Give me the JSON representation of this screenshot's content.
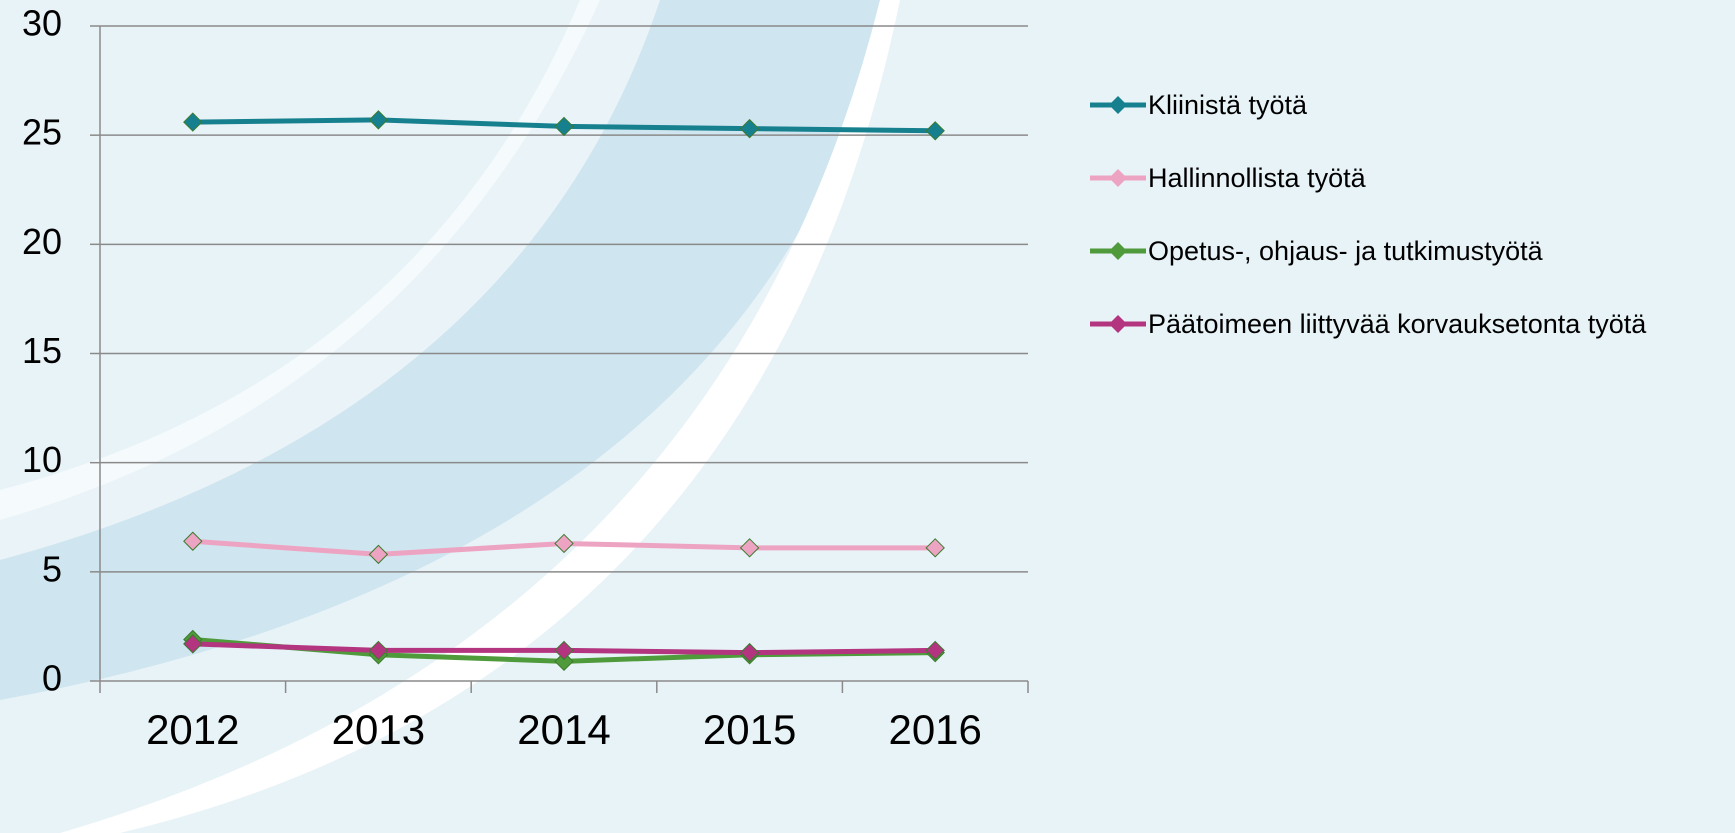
{
  "chart_data": {
    "type": "line",
    "categories": [
      "2012",
      "2013",
      "2014",
      "2015",
      "2016"
    ],
    "series": [
      {
        "name": "Kliinistä työtä",
        "color": "#17808f",
        "values": [
          25.6,
          25.7,
          25.4,
          25.3,
          25.2
        ]
      },
      {
        "name": "Hallinnollista työtä",
        "color": "#eda4c2",
        "values": [
          6.4,
          5.8,
          6.3,
          6.1,
          6.1
        ]
      },
      {
        "name": "Opetus-, ohjaus- ja tutkimustyötä",
        "color": "#4f9a3b",
        "values": [
          1.9,
          1.2,
          0.9,
          1.2,
          1.3
        ]
      },
      {
        "name": "Päätoimeen liittyvää korvauksetonta työtä",
        "color": "#b3347f",
        "values": [
          1.7,
          1.4,
          1.4,
          1.3,
          1.4
        ]
      }
    ],
    "ylim": [
      0,
      30
    ],
    "yticks": [
      0,
      5,
      10,
      15,
      20,
      25,
      30
    ],
    "grid": true,
    "legend": "right"
  }
}
